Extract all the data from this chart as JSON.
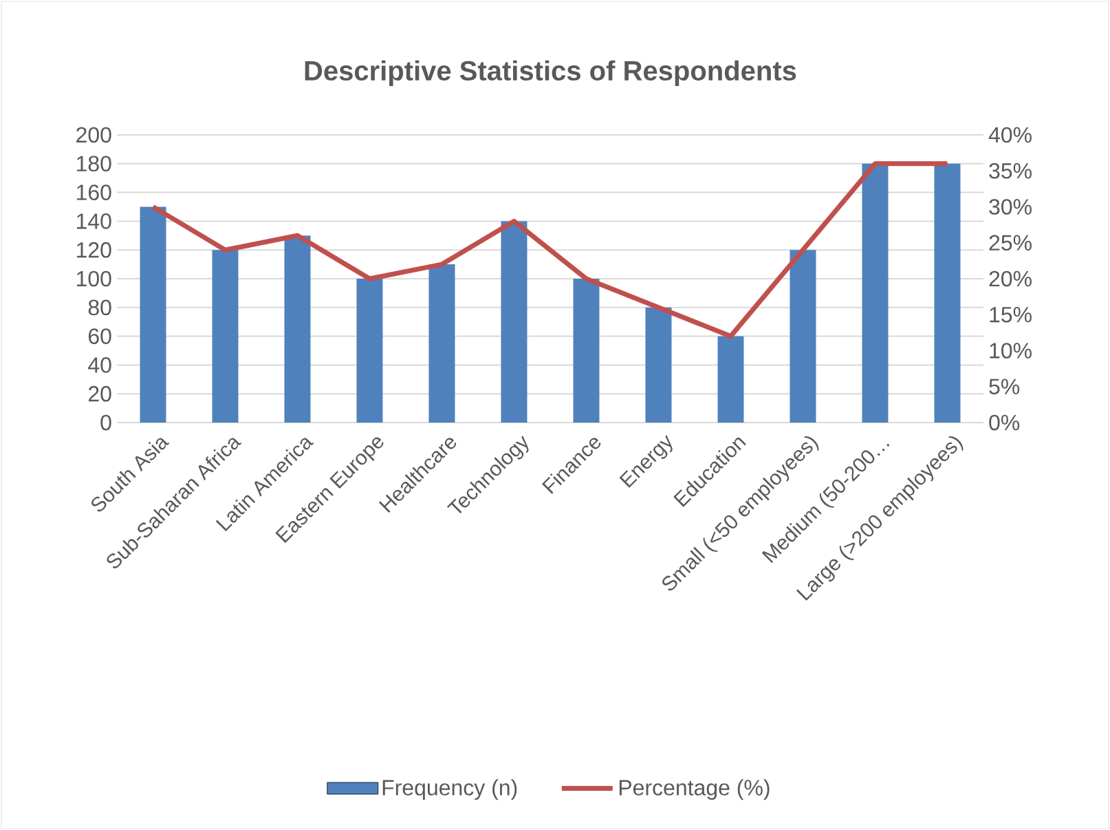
{
  "chart_data": {
    "type": "bar",
    "title": "Descriptive Statistics of Respondents",
    "categories": [
      "South Asia",
      "Sub-Saharan Africa",
      "Latin America",
      "Eastern Europe",
      "Healthcare",
      "Technology",
      "Finance",
      "Energy",
      "Education",
      "Small (<50 employees)",
      "Medium (50-200…",
      "Large (>200 employees)"
    ],
    "series": [
      {
        "name": "Frequency (n)",
        "color": "#4f81bd",
        "values": [
          150,
          120,
          130,
          100,
          110,
          140,
          100,
          80,
          60,
          120,
          180,
          180
        ]
      },
      {
        "name": "Percentage (%)",
        "type": "line",
        "axis": "y2",
        "color": "#c0504d",
        "values": [
          30,
          24,
          26,
          20,
          22,
          28,
          20,
          16,
          12,
          24,
          36,
          36
        ]
      }
    ],
    "ylim": [
      0,
      200
    ],
    "yticks": [
      0,
      20,
      40,
      60,
      80,
      100,
      120,
      140,
      160,
      180,
      200
    ],
    "y2lim": [
      0,
      40
    ],
    "y2ticks": [
      {
        "value": 0,
        "label": "0%"
      },
      {
        "value": 5,
        "label": "5%"
      },
      {
        "value": 10,
        "label": "10%"
      },
      {
        "value": 15,
        "label": "15%"
      },
      {
        "value": 20,
        "label": "20%"
      },
      {
        "value": 25,
        "label": "25%"
      },
      {
        "value": 30,
        "label": "30%"
      },
      {
        "value": 35,
        "label": "35%"
      },
      {
        "value": 40,
        "label": "40%"
      }
    ],
    "grid": "y",
    "legend": "bottom",
    "marker": "none"
  }
}
